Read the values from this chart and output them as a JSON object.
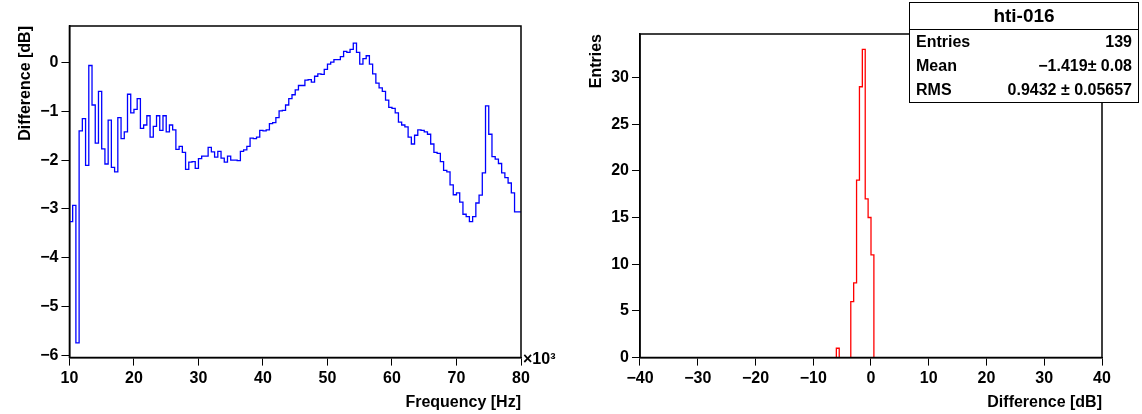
{
  "chart_data": [
    {
      "type": "histogram",
      "xlabel": "Frequency [Hz]",
      "ylabel": "Difference [dB]",
      "annotations": [
        "×10³"
      ],
      "bins": [
        10,
        10.5,
        11,
        11.5,
        12,
        12.5,
        13,
        13.5,
        14,
        14.5,
        15,
        15.5,
        16,
        16.5,
        17,
        17.5,
        18,
        18.5,
        19,
        19.5,
        20,
        20.5,
        21,
        21.5,
        22,
        22.5,
        23,
        23.5,
        24,
        24.5,
        25,
        25.5,
        26,
        26.5,
        27,
        27.5,
        28,
        28.5,
        29,
        29.5,
        30,
        30.5,
        31,
        31.5,
        32,
        32.5,
        33,
        33.5,
        34,
        34.5,
        35,
        35.5,
        36,
        36.5,
        37,
        37.5,
        38,
        38.5,
        39,
        39.5,
        40,
        40.5,
        41,
        41.5,
        42,
        42.5,
        43,
        43.5,
        44,
        44.5,
        45,
        45.5,
        46,
        46.5,
        47,
        47.5,
        48,
        48.5,
        49,
        49.5,
        50,
        50.5,
        51,
        51.5,
        52,
        52.5,
        53,
        53.5,
        54,
        54.5,
        55,
        55.5,
        56,
        56.5,
        57,
        57.5,
        58,
        58.5,
        59,
        59.5,
        60,
        60.5,
        61,
        61.5,
        62,
        62.5,
        63,
        63.5,
        64,
        64.5,
        65,
        65.5,
        66,
        66.5,
        67,
        67.5,
        68,
        68.5,
        69,
        69.5,
        70,
        70.5,
        71,
        71.5,
        72,
        72.5,
        73,
        73.5,
        74,
        74.5,
        75,
        75.5,
        76,
        76.5,
        77,
        77.5,
        78,
        78.5,
        79,
        79.5,
        80
      ],
      "values": [
        -3.26,
        -2.93,
        -5.75,
        -1.4,
        -1.15,
        -2.11,
        -0.06,
        -0.87,
        -1.65,
        -0.59,
        -1.77,
        -2.08,
        -1.18,
        -2.15,
        -2.24,
        -1.13,
        -1.56,
        -1.42,
        -0.65,
        -1.03,
        -0.96,
        -0.74,
        -1.35,
        -1.28,
        -1.09,
        -1.53,
        -1.31,
        -1.09,
        -1.39,
        -1.09,
        -1.42,
        -1.28,
        -1.38,
        -1.78,
        -1.72,
        -1.84,
        -2.19,
        -2.04,
        -2.03,
        -2.17,
        -1.97,
        -1.92,
        -1.92,
        -1.74,
        -1.83,
        -1.94,
        -1.82,
        -1.96,
        -2.04,
        -1.92,
        -2.0,
        -2.0,
        -2.01,
        -1.82,
        -1.79,
        -1.72,
        -1.55,
        -1.56,
        -1.53,
        -1.39,
        -1.4,
        -1.38,
        -1.25,
        -1.23,
        -1.13,
        -0.99,
        -0.98,
        -0.87,
        -0.74,
        -0.66,
        -0.56,
        -0.47,
        -0.47,
        -0.36,
        -0.35,
        -0.4,
        -0.28,
        -0.23,
        -0.24,
        -0.14,
        -0.03,
        0.01,
        0.06,
        0.06,
        0.12,
        0.23,
        0.21,
        0.27,
        0.4,
        0.21,
        -0.03,
        0.08,
        0.14,
        -0.03,
        -0.23,
        -0.42,
        -0.52,
        -0.59,
        -0.77,
        -0.92,
        -0.94,
        -1.03,
        -1.22,
        -1.28,
        -1.32,
        -1.53,
        -1.67,
        -1.49,
        -1.38,
        -1.39,
        -1.42,
        -1.47,
        -1.67,
        -1.84,
        -1.86,
        -2.03,
        -2.21,
        -2.24,
        -2.51,
        -2.71,
        -2.67,
        -2.86,
        -3.11,
        -3.16,
        -3.26,
        -3.16,
        -2.88,
        -2.72,
        -2.26,
        -0.89,
        -1.47,
        -1.93,
        -1.98,
        -2.07,
        -2.26,
        -2.36,
        -2.47,
        -2.67,
        -3.06,
        -3.06
      ],
      "color": "#0000ff",
      "xlim": [
        10,
        80
      ],
      "xticks": [
        10,
        20,
        30,
        40,
        50,
        60,
        70,
        80
      ],
      "ylim": [
        -6.05,
        0.75
      ],
      "yticks": [
        -6,
        -5,
        -4,
        -3,
        -2,
        -1,
        0
      ],
      "grid": false,
      "legend": false
    },
    {
      "type": "histogram",
      "title": "hti-016",
      "xlabel": "Difference [dB]",
      "ylabel": "Entries",
      "annotations": [
        "Entries",
        "139",
        "Mean",
        "−1.419±  0.08",
        "RMS",
        "0.9432 ± 0.05657"
      ],
      "bins": [
        -6,
        -5.5,
        -5,
        -4.5,
        -4,
        -3.5,
        -3,
        -2.5,
        -2,
        -1.5,
        -1,
        -0.5,
        0,
        0.5
      ],
      "values": [
        1,
        0,
        0,
        0,
        0,
        6,
        8,
        19,
        29,
        33,
        17,
        15,
        11
      ],
      "color": "#ff0000",
      "xlim": [
        -40,
        40
      ],
      "xticks": [
        -40,
        -30,
        -20,
        -10,
        0,
        10,
        20,
        30,
        40
      ],
      "ylim": [
        0,
        34.65
      ],
      "yticks": [
        0,
        5,
        10,
        15,
        20,
        25,
        30
      ],
      "grid": false,
      "legend": false
    }
  ]
}
